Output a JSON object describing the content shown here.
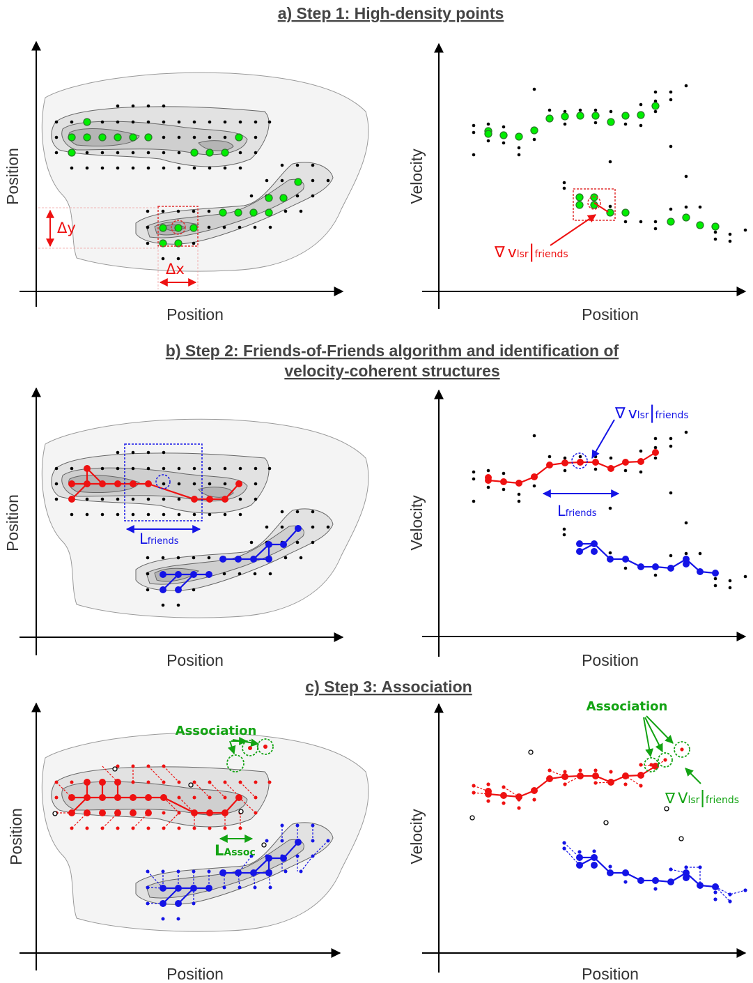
{
  "titles": {
    "step1": "a) Step 1: High-density points",
    "step2_line1": "b) Step 2: Friends-of-Friends algorithm and identification of",
    "step2_line2": "velocity-coherent structures",
    "step3": "c)  Step 3: Association"
  },
  "axes": {
    "position": "Position",
    "velocity": "Velocity"
  },
  "annotations": {
    "delta_x": "Δx",
    "delta_y": "Δy",
    "nabla": "∇",
    "v_lower": "v",
    "v_upper": "V",
    "sub_lsr": "lsr",
    "bar": "|",
    "sub_friends": "friends",
    "L": "L",
    "sub_assoc": "Assoc",
    "association": "Association"
  },
  "colors": {
    "green_point": "#00ee00",
    "green_text": "#13a313",
    "red": "#ee1111",
    "blue": "#1414e6",
    "black_point": "#000000",
    "axis": "#000000",
    "title": "#444444"
  }
}
